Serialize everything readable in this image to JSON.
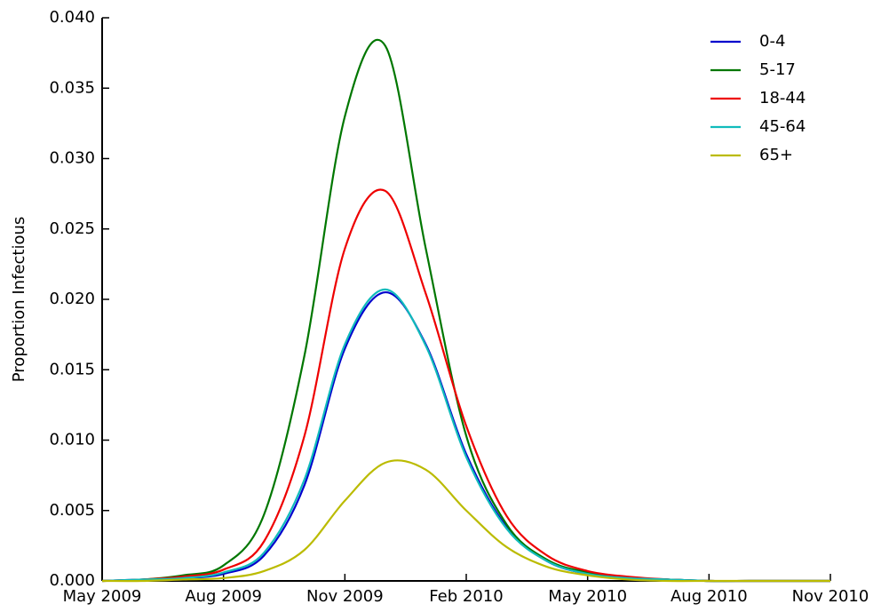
{
  "chart_data": {
    "type": "line",
    "ylabel": "Proportion Infectious",
    "x": [
      "2009-05",
      "2009-06",
      "2009-07",
      "2009-08",
      "2009-09",
      "2009-10",
      "2009-11",
      "2009-12",
      "2010-01",
      "2010-02",
      "2010-03",
      "2010-04",
      "2010-05",
      "2010-06",
      "2010-07",
      "2010-08",
      "2010-09",
      "2010-10",
      "2010-11"
    ],
    "xlim": [
      "2009-05",
      "2010-11"
    ],
    "xticks": [
      {
        "value": "2009-05",
        "label": "May 2009"
      },
      {
        "value": "2009-08",
        "label": "Aug 2009"
      },
      {
        "value": "2009-11",
        "label": "Nov 2009"
      },
      {
        "value": "2010-02",
        "label": "Feb 2010"
      },
      {
        "value": "2010-05",
        "label": "May 2010"
      },
      {
        "value": "2010-08",
        "label": "Aug 2010"
      },
      {
        "value": "2010-11",
        "label": "Nov 2010"
      }
    ],
    "ylim": [
      0,
      0.04
    ],
    "yticks": [
      {
        "value": 0,
        "label": "0.000"
      },
      {
        "value": 0.005,
        "label": "0.005"
      },
      {
        "value": 0.01,
        "label": "0.010"
      },
      {
        "value": 0.015,
        "label": "0.015"
      },
      {
        "value": 0.02,
        "label": "0.020"
      },
      {
        "value": 0.025,
        "label": "0.025"
      },
      {
        "value": 0.03,
        "label": "0.030"
      },
      {
        "value": 0.035,
        "label": "0.035"
      },
      {
        "value": 0.04,
        "label": "0.040"
      }
    ],
    "legend": "upper right",
    "series": [
      {
        "name": "0-4",
        "color": "#0000cc",
        "values": [
          0,
          0.0001,
          0.0002,
          0.0005,
          0.0018,
          0.0068,
          0.0165,
          0.0205,
          0.0168,
          0.009,
          0.0038,
          0.0014,
          0.0005,
          0.0002,
          0.0001,
          0,
          0,
          0,
          0
        ]
      },
      {
        "name": "5-17",
        "color": "#007700",
        "values": [
          0,
          0.0001,
          0.0004,
          0.0011,
          0.0047,
          0.016,
          0.033,
          0.038,
          0.0236,
          0.0103,
          0.004,
          0.0015,
          0.0006,
          0.0002,
          0.0001,
          0,
          0,
          0,
          0
        ]
      },
      {
        "name": "18-44",
        "color": "#ee0000",
        "values": [
          0,
          0.0001,
          0.0003,
          0.0008,
          0.0028,
          0.0103,
          0.0236,
          0.0277,
          0.0204,
          0.011,
          0.0046,
          0.0018,
          0.0007,
          0.0003,
          0.0001,
          0,
          0,
          0,
          0
        ]
      },
      {
        "name": "45-64",
        "color": "#11bbbb",
        "values": [
          0,
          0.0001,
          0.0002,
          0.0006,
          0.002,
          0.0072,
          0.0168,
          0.0207,
          0.0167,
          0.0088,
          0.0037,
          0.0014,
          0.0005,
          0.0002,
          0.0001,
          0,
          0,
          0,
          0
        ]
      },
      {
        "name": "65+",
        "color": "#bbbb00",
        "values": [
          0,
          0,
          0.0001,
          0.0002,
          0.0007,
          0.0022,
          0.0057,
          0.0084,
          0.0079,
          0.005,
          0.0024,
          0.001,
          0.0004,
          0.0001,
          0,
          0,
          0,
          0,
          0
        ]
      }
    ]
  }
}
